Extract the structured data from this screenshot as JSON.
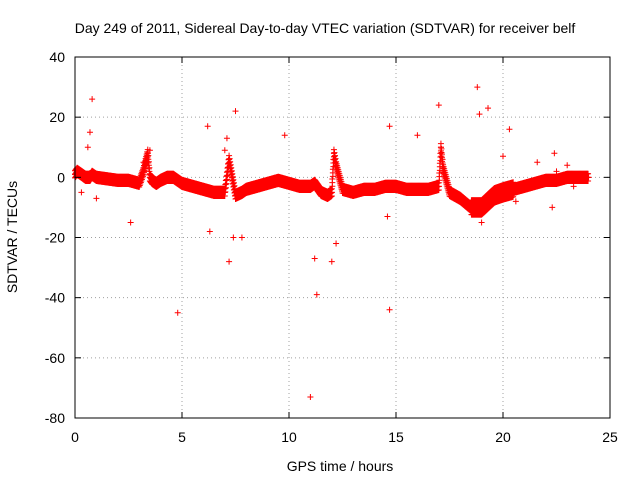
{
  "chart_data": {
    "type": "scatter",
    "title": "Day 249 of 2011, Sidereal Day-to-day VTEC variation (SDTVAR) for receiver belf",
    "xlabel": "GPS time / hours",
    "ylabel": "SDTVAR / TECUs",
    "xlim": [
      0,
      25
    ],
    "ylim": [
      -80,
      40
    ],
    "xticks": [
      0,
      5,
      10,
      15,
      20,
      25
    ],
    "yticks": [
      -80,
      -60,
      -40,
      -20,
      0,
      20,
      40
    ],
    "xtick_labels": [
      "0",
      "5",
      "10",
      "15",
      "20",
      "25"
    ],
    "ytick_labels": [
      "-80",
      "-60",
      "-40",
      "-20",
      "0",
      "20",
      "40"
    ],
    "grid": true,
    "marker": "+",
    "series": [
      {
        "name": "SDTVAR",
        "color": "#ff0000",
        "x": [
          0.0,
          0.1,
          0.3,
          0.5,
          0.7,
          0.8,
          1.0,
          1.5,
          2.0,
          2.5,
          3.0,
          3.2,
          3.4,
          3.5,
          3.6,
          3.8,
          4.0,
          4.3,
          4.6,
          4.8,
          5.0,
          5.5,
          6.0,
          6.5,
          7.0,
          7.2,
          7.3,
          7.5,
          7.8,
          8.0,
          8.5,
          9.0,
          9.5,
          10.0,
          10.5,
          11.0,
          11.2,
          11.5,
          11.8,
          12.0,
          12.1,
          12.2,
          12.5,
          13.0,
          13.5,
          14.0,
          14.5,
          14.7,
          15.0,
          15.5,
          16.0,
          16.5,
          17.0,
          17.1,
          17.2,
          17.5,
          18.0,
          18.5,
          19.0,
          19.3,
          19.6,
          20.0,
          20.5,
          21.0,
          21.5,
          22.0,
          22.5,
          23.0,
          23.5,
          24.0,
          0.8,
          0.7,
          0.3,
          2.6,
          3.5,
          3.3,
          4.8,
          6.2,
          6.3,
          7.2,
          7.4,
          7.5,
          7.8,
          9.8,
          11.0,
          11.3,
          11.2,
          12.0,
          12.2,
          14.7,
          14.7,
          14.6,
          16.0,
          17.0,
          18.8,
          18.9,
          19.3,
          19.0,
          20.3,
          20.0,
          20.6,
          21.6,
          22.3,
          22.4,
          22.5,
          23.0,
          23.3,
          7.1,
          7.0,
          3.2,
          0.6,
          1.0
        ],
        "y": [
          1,
          2,
          1,
          0,
          0,
          1,
          0,
          -0.5,
          -1,
          -1,
          -2,
          2,
          8,
          0,
          -1,
          -2,
          -1,
          0,
          0,
          -1,
          -2,
          -3,
          -4,
          -5,
          -5,
          6,
          2,
          -6,
          -5,
          -4,
          -3,
          -2,
          -1,
          -2,
          -3,
          -3,
          -2,
          -5,
          -6,
          -5,
          8,
          4,
          -4,
          -5,
          -4,
          -4,
          -3,
          -3,
          -3,
          -4,
          -4,
          -4,
          -3,
          10,
          3,
          -5,
          -7,
          -10,
          -10,
          -8,
          -6,
          -5,
          -4,
          -3,
          -2,
          -1,
          -1,
          0,
          0,
          0,
          26,
          15,
          -5,
          -15,
          9,
          4,
          -45,
          17,
          -18,
          -28,
          -20,
          22,
          -20,
          14,
          -73,
          -39,
          -27,
          -28,
          -22,
          -44,
          17,
          -13,
          14,
          24,
          30,
          21,
          23,
          -15,
          16,
          7,
          -8,
          5,
          -10,
          8,
          2,
          4,
          -3,
          13,
          9,
          5,
          10,
          -7
        ]
      }
    ]
  }
}
